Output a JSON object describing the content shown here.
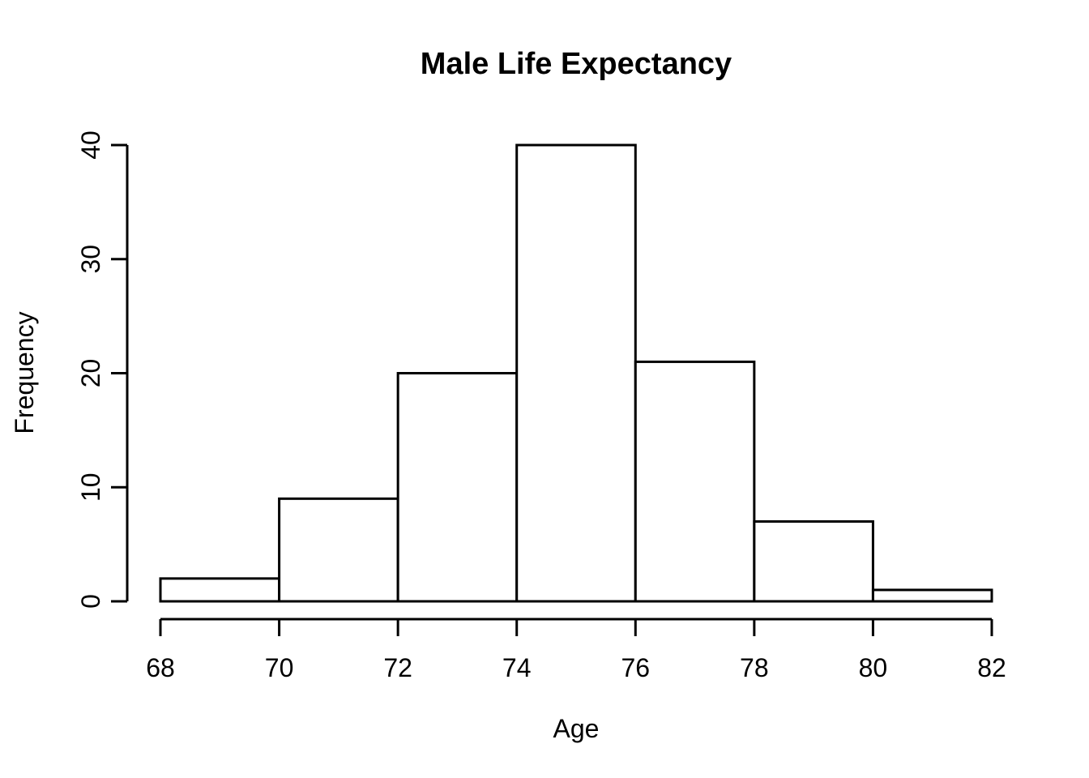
{
  "chart_data": {
    "type": "bar",
    "subtype": "histogram",
    "title": "Male Life Expectancy",
    "xlabel": "Age",
    "ylabel": "Frequency",
    "bin_edges": [
      68,
      70,
      72,
      74,
      76,
      78,
      80,
      82
    ],
    "counts": [
      2,
      9,
      20,
      40,
      21,
      7,
      1
    ],
    "x_ticks": [
      68,
      70,
      72,
      74,
      76,
      78,
      80,
      82
    ],
    "y_ticks": [
      0,
      10,
      20,
      30,
      40
    ],
    "xlim": [
      68,
      82
    ],
    "ylim": [
      0,
      40
    ],
    "grid": false,
    "legend": "none",
    "colors": {
      "background": "#ffffff",
      "bar_fill": "#ffffff",
      "bar_border": "#000000",
      "axis": "#000000",
      "text": "#000000"
    }
  }
}
